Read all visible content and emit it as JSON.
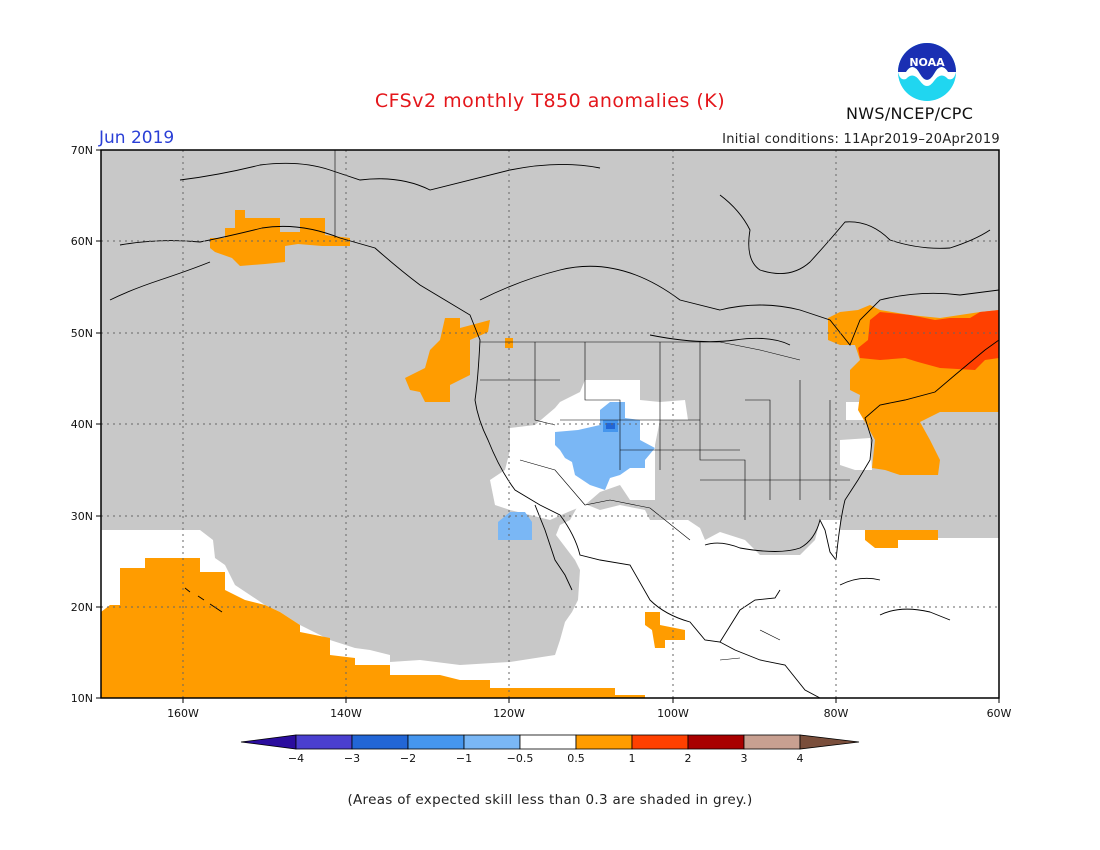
{
  "header": {
    "title": "CFSv2 monthly T850 anomalies (K)",
    "month": "Jun 2019",
    "initial_conditions": "Initial conditions: 11Apr2019–20Apr2019",
    "agency": "NWS/NCEP/CPC",
    "logo_text": "NOAA"
  },
  "map": {
    "lat_labels": [
      "70N",
      "60N",
      "50N",
      "40N",
      "30N",
      "20N",
      "10N"
    ],
    "lon_labels": [
      "160W",
      "140W",
      "120W",
      "100W",
      "80W",
      "60W"
    ],
    "grid": true
  },
  "colorbar": {
    "labels": [
      "−4",
      "−3",
      "−2",
      "−1",
      "−0.5",
      "0.5",
      "1",
      "2",
      "3",
      "4"
    ],
    "colors": [
      "#2b0d9e",
      "#4a3fcf",
      "#2266d6",
      "#4596ee",
      "#7ab7f5",
      "#ffffff",
      "#ff9c00",
      "#ff4000",
      "#a80000",
      "#c8a091",
      "#7a4e3b"
    ]
  },
  "colors": {
    "skill_grey": "#c8c8c8",
    "positive_anomaly": "#ff9c00",
    "strong_positive_anomaly": "#ff4000",
    "negative_anomaly": "#7ab7f5",
    "moderate_negative_anomaly": "#4596ee",
    "strong_negative_anomaly": "#2266d6"
  },
  "footnote": "(Areas of expected skill less than 0.3 are shaded in grey.)"
}
